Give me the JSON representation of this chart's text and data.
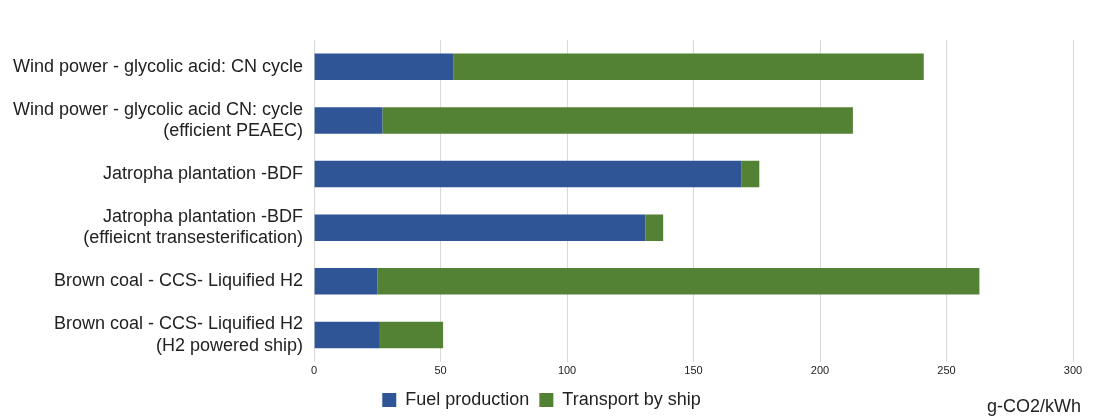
{
  "chart_data": {
    "type": "bar",
    "orientation": "horizontal",
    "stacked": true,
    "categories": [
      "Wind power - glycolic acid: CN cycle",
      "Wind power - glycolic acid CN: cycle\n(efficient PEAEC)",
      "Jatropha plantation -BDF",
      "Jatropha plantation -BDF\n(effieicnt transesterification)",
      "Brown coal - CCS- Liquified H2",
      "Brown coal - CCS- Liquified H2\n(H2 powered ship)"
    ],
    "series": [
      {
        "name": "Fuel production",
        "color": "#2f5597",
        "values": [
          55,
          27,
          169,
          131,
          25,
          26
        ]
      },
      {
        "name": "Transport by ship",
        "color": "#548235",
        "values": [
          186,
          186,
          7,
          7,
          238,
          25
        ]
      }
    ],
    "xlim": [
      0,
      300
    ],
    "xticks": [
      0,
      50,
      100,
      150,
      200,
      250,
      300
    ],
    "grid": "x",
    "legend": "bottom",
    "xlabel": "g-CO2/kWh"
  }
}
